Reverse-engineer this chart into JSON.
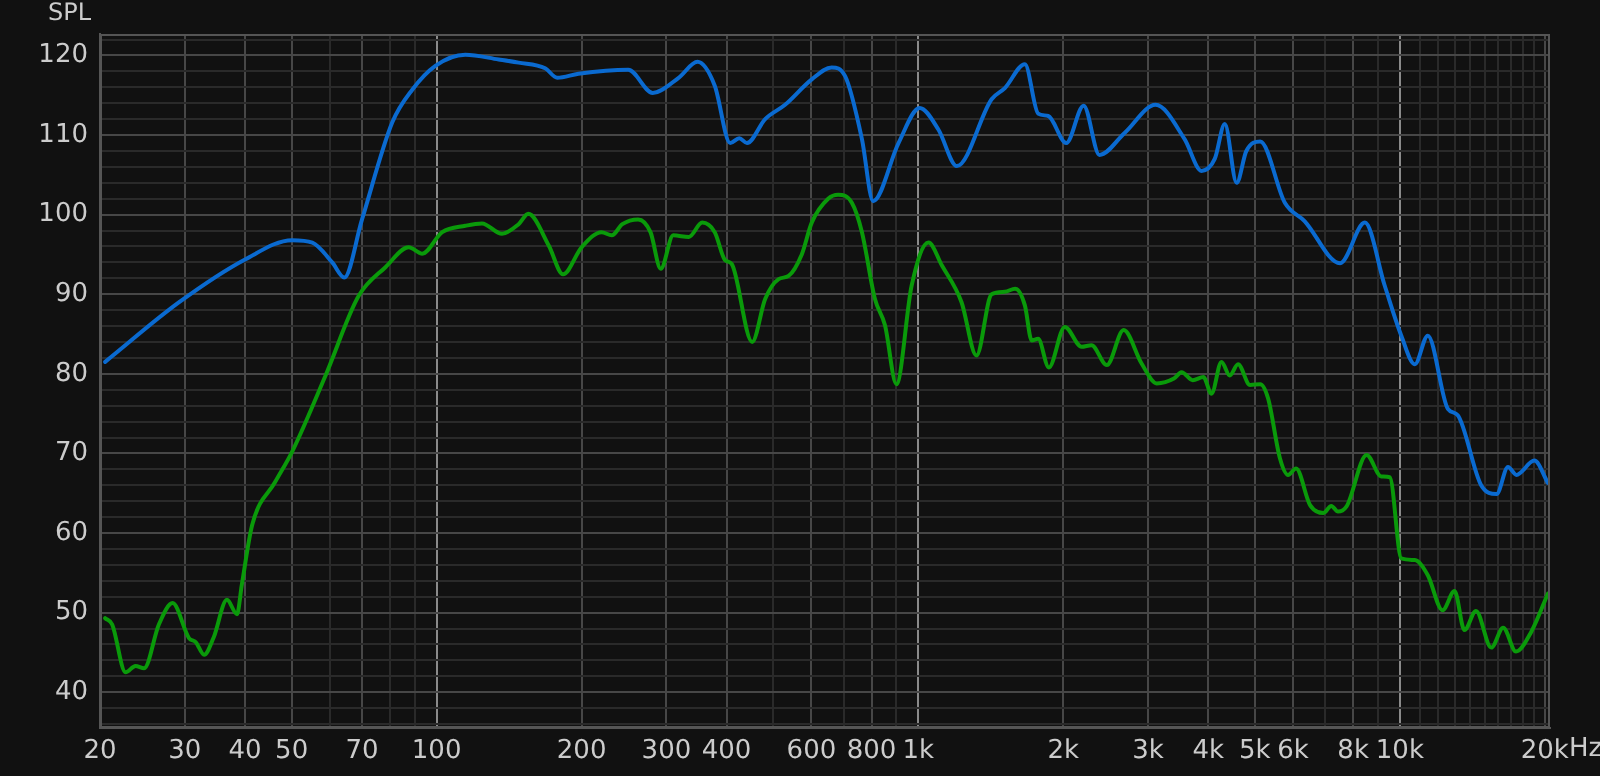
{
  "chart_data": {
    "type": "line",
    "ylabel": "SPL",
    "log": "x",
    "grid": true,
    "marker": "none",
    "line_style": "solid",
    "xlim": [
      20,
      20500
    ],
    "ylim": [
      35.5,
      122.7
    ],
    "xticks": [
      20,
      30,
      40,
      50,
      {
        "value": 60,
        "label": null
      },
      70,
      {
        "value": 80,
        "label": null
      },
      {
        "value": 90,
        "label": null
      },
      100,
      200,
      300,
      400,
      {
        "value": 500,
        "label": null
      },
      600,
      {
        "value": 700,
        "label": null
      },
      800,
      {
        "value": 900,
        "label": null
      },
      {
        "value": 1000,
        "label": "1k"
      },
      {
        "value": 2000,
        "label": "2k"
      },
      {
        "value": 3000,
        "label": "3k"
      },
      {
        "value": 4000,
        "label": "4k"
      },
      {
        "value": 5000,
        "label": "5k"
      },
      {
        "value": 6000,
        "label": "6k"
      },
      {
        "value": 7000,
        "label": null
      },
      {
        "value": 8000,
        "label": "8k"
      },
      {
        "value": 9000,
        "label": null
      },
      {
        "value": 10000,
        "label": "10k"
      },
      {
        "value": 11000,
        "label": null
      },
      {
        "value": 12000,
        "label": null
      },
      {
        "value": 13000,
        "label": null
      },
      {
        "value": 14000,
        "label": null
      },
      {
        "value": 15000,
        "label": null
      },
      {
        "value": 16000,
        "label": null
      },
      {
        "value": 17000,
        "label": null
      },
      {
        "value": 18000,
        "label": null
      },
      {
        "value": 19000,
        "label": null
      },
      {
        "value": 20000,
        "label": "20k"
      }
    ],
    "xlabel": "Hz",
    "yticks": [
      {
        "value": 36,
        "label": null
      },
      {
        "value": 38,
        "label": null
      },
      40,
      {
        "value": 42,
        "label": null
      },
      {
        "value": 44,
        "label": null
      },
      {
        "value": 46,
        "label": null
      },
      {
        "value": 48,
        "label": null
      },
      50,
      {
        "value": 52,
        "label": null
      },
      {
        "value": 54,
        "label": null
      },
      {
        "value": 56,
        "label": null
      },
      {
        "value": 58,
        "label": null
      },
      60,
      {
        "value": 62,
        "label": null
      },
      {
        "value": 64,
        "label": null
      },
      {
        "value": 66,
        "label": null
      },
      {
        "value": 68,
        "label": null
      },
      70,
      {
        "value": 72,
        "label": null
      },
      {
        "value": 74,
        "label": null
      },
      {
        "value": 76,
        "label": null
      },
      {
        "value": 78,
        "label": null
      },
      80,
      {
        "value": 82,
        "label": null
      },
      {
        "value": 84,
        "label": null
      },
      {
        "value": 86,
        "label": null
      },
      {
        "value": 88,
        "label": null
      },
      90,
      {
        "value": 92,
        "label": null
      },
      {
        "value": 94,
        "label": null
      },
      {
        "value": 96,
        "label": null
      },
      {
        "value": 98,
        "label": null
      },
      100,
      {
        "value": 102,
        "label": null
      },
      {
        "value": 104,
        "label": null
      },
      {
        "value": 106,
        "label": null
      },
      {
        "value": 108,
        "label": null
      },
      110,
      {
        "value": 112,
        "label": null
      },
      {
        "value": 114,
        "label": null
      },
      {
        "value": 116,
        "label": null
      },
      {
        "value": 118,
        "label": null
      },
      120,
      {
        "value": 122,
        "label": null
      }
    ],
    "legend": false,
    "series": [
      {
        "color": "#0a6ad0",
        "x": [
          20.5,
          29.2,
          40.1,
          50.1,
          55.2,
          60.7,
          64.3,
          70,
          80.9,
          89,
          99.4,
          114.7,
          134.5,
          148,
          168,
          178,
          197,
          250,
          281,
          318,
          348,
          378,
          407,
          425,
          441,
          481,
          529,
          601,
          661,
          705,
          764,
          806,
          910,
          1007,
          1101,
          1203,
          1420,
          1513,
          1665,
          1774,
          1862,
          2029,
          2205,
          2379,
          2685,
          3110,
          3573,
          3874,
          4127,
          4330,
          4583,
          4800,
          5130,
          5770,
          6340,
          7515,
          8460,
          9300,
          10070,
          10740,
          11430,
          12580,
          13190,
          14750,
          15880,
          16770,
          17460,
          19020,
          20300
        ],
        "values": [
          81.5,
          89,
          94.4,
          96.8,
          96.5,
          94,
          92.1,
          99.4,
          111.6,
          115.7,
          118.7,
          120.1,
          119.5,
          119.1,
          118.4,
          117.2,
          117.7,
          118.2,
          115.3,
          117.2,
          119.2,
          116.2,
          109,
          109.6,
          109,
          112,
          113.8,
          117,
          118.5,
          117.4,
          109.5,
          101.7,
          109,
          113.4,
          110.7,
          106.1,
          114.5,
          115.9,
          118.9,
          112.7,
          112.4,
          109,
          113.7,
          107.5,
          110.3,
          113.8,
          109.5,
          105.5,
          107,
          111.4,
          104,
          108,
          109.2,
          101.5,
          99.2,
          93.9,
          99,
          91.1,
          84.8,
          81.2,
          84.8,
          75.6,
          74.8,
          66,
          64.9,
          68.3,
          67.3,
          69.1,
          66.3
        ]
      },
      {
        "color": "#0a9a0a",
        "x": [
          20.5,
          21.2,
          22.6,
          23.7,
          24.7,
          26.5,
          28.3,
          30.6,
          31.6,
          32.9,
          34.4,
          36.7,
          38.5,
          39.4,
          41.4,
          46.2,
          50.1,
          58.8,
          68.9,
          78.3,
          87.5,
          93.3,
          102.7,
          114.7,
          124.2,
          136.7,
          148,
          155,
          171,
          183,
          200,
          220,
          231,
          243,
          262,
          278,
          292,
          310,
          334,
          356,
          378,
          397,
          410,
          452,
          481,
          513,
          538,
          573,
          601,
          650,
          682,
          728,
          764,
          813,
          853,
          901,
          969,
          1050,
          1120,
          1230,
          1321,
          1420,
          1513,
          1589,
          1665,
          1720,
          1774,
          1867,
          2015,
          2183,
          2290,
          2463,
          2670,
          2909,
          3127,
          3395,
          3522,
          3715,
          3909,
          4063,
          4262,
          4434,
          4613,
          4886,
          5130,
          5327,
          5636,
          5859,
          6088,
          6510,
          6935,
          7205,
          7440,
          7760,
          8530,
          9152,
          9530,
          10070,
          10740,
          11430,
          12265,
          12990,
          13620,
          14390,
          15480,
          16390,
          17420,
          18750,
          20300
        ],
        "values": [
          49.3,
          48.5,
          42.5,
          43.3,
          43,
          48.5,
          51.2,
          46.8,
          46.3,
          44.7,
          46.8,
          51.6,
          49.8,
          53.5,
          61,
          66.4,
          70.2,
          79.8,
          89.8,
          93.4,
          95.9,
          95.1,
          97.8,
          98.6,
          98.9,
          97.6,
          98.8,
          100.1,
          96.1,
          92.5,
          95.9,
          97.8,
          97.4,
          98.8,
          99.4,
          97.8,
          93.2,
          97.4,
          97.2,
          99,
          97.8,
          94.3,
          93.8,
          84,
          89.4,
          91.9,
          92.3,
          95,
          99,
          102,
          102.5,
          101.5,
          97.8,
          89.4,
          86.1,
          78.7,
          91.1,
          96.5,
          93.6,
          89,
          82.3,
          90,
          90.3,
          90.7,
          88.6,
          84.2,
          84.4,
          80.8,
          85.9,
          83.4,
          83.6,
          81.1,
          85.5,
          81.3,
          78.8,
          79.4,
          80.2,
          79.2,
          79.6,
          77.5,
          81.5,
          79.8,
          81.2,
          78.6,
          78.7,
          76.9,
          69.4,
          67.3,
          68.1,
          63.5,
          62.5,
          63.4,
          62.7,
          63.4,
          69.8,
          67.1,
          67,
          56.8,
          56.6,
          54.7,
          50.3,
          52.7,
          47.8,
          50.2,
          45.6,
          48.1,
          45.1,
          47.6,
          52.4
        ]
      }
    ]
  }
}
